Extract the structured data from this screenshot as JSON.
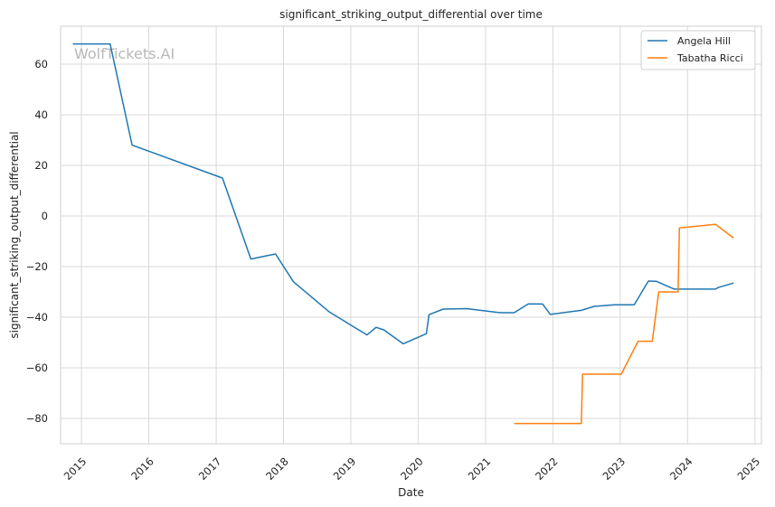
{
  "chart_data": {
    "type": "line",
    "title": "significant_striking_output_differential over time",
    "xlabel": "Date",
    "ylabel": "significant_striking_output_differential",
    "watermark": "WolfTickets.AI",
    "xlim": [
      "2014-09-10",
      "2025-02-05"
    ],
    "ylim": [
      -90,
      75
    ],
    "x_ticks": [
      "2015",
      "2016",
      "2017",
      "2018",
      "2019",
      "2020",
      "2021",
      "2022",
      "2023",
      "2024",
      "2025"
    ],
    "y_ticks": [
      60,
      40,
      20,
      0,
      -20,
      -40,
      -60,
      -80
    ],
    "grid": true,
    "legend_position": "top-right",
    "series": [
      {
        "name": "Angela Hill",
        "color": "#1f77b4",
        "points": [
          [
            "2014-11-15",
            68
          ],
          [
            "2015-06-06",
            68
          ],
          [
            "2015-10-03",
            28
          ],
          [
            "2017-02-04",
            15
          ],
          [
            "2017-07-08",
            -17
          ],
          [
            "2017-11-19",
            -15
          ],
          [
            "2018-02-24",
            -26
          ],
          [
            "2018-09-08",
            -38
          ],
          [
            "2019-03-30",
            -47
          ],
          [
            "2019-05-18",
            -44
          ],
          [
            "2019-06-29",
            -45
          ],
          [
            "2019-10-12",
            -50.5
          ],
          [
            "2020-02-15",
            -46.5
          ],
          [
            "2020-02-29",
            -39
          ],
          [
            "2020-05-16",
            -36.8
          ],
          [
            "2020-09-19",
            -36.6
          ],
          [
            "2021-03-20",
            -38.2
          ],
          [
            "2021-06-05",
            -38.2
          ],
          [
            "2021-08-21",
            -34.7
          ],
          [
            "2021-11-06",
            -34.8
          ],
          [
            "2021-12-18",
            -38.9
          ],
          [
            "2022-06-04",
            -37.3
          ],
          [
            "2022-08-13",
            -35.7
          ],
          [
            "2022-12-03",
            -35.1
          ],
          [
            "2023-03-18",
            -35.1
          ],
          [
            "2023-06-03",
            -25.7
          ],
          [
            "2023-07-15",
            -25.8
          ],
          [
            "2023-10-21",
            -28.9
          ],
          [
            "2024-06-01",
            -28.9
          ],
          [
            "2024-06-15",
            -28.3
          ],
          [
            "2024-09-07",
            -26.5
          ]
        ]
      },
      {
        "name": "Tabatha Ricci",
        "color": "#ff7f0e",
        "points": [
          [
            "2021-06-05",
            -82
          ],
          [
            "2022-06-04",
            -82
          ],
          [
            "2022-06-11",
            -62.5
          ],
          [
            "2023-01-07",
            -62.5
          ],
          [
            "2023-04-08",
            -49.5
          ],
          [
            "2023-06-24",
            -49.5
          ],
          [
            "2023-07-29",
            -30
          ],
          [
            "2023-11-11",
            -30
          ],
          [
            "2023-11-18",
            -4.7
          ],
          [
            "2024-06-01",
            -3.3
          ],
          [
            "2024-09-07",
            -8.7
          ]
        ]
      }
    ]
  }
}
